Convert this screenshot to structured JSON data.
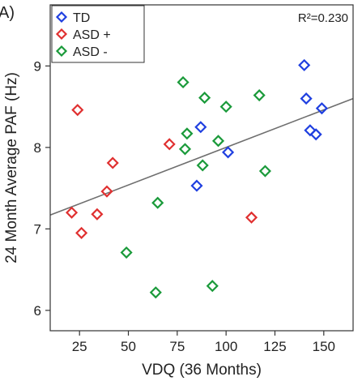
{
  "chart_data": {
    "type": "scatter",
    "panel_label": "A)",
    "xlabel": "VDQ (36 Months)",
    "ylabel": "24 Month Average PAF (Hz)",
    "annotation": "R²=0.230",
    "xlim": [
      10,
      165
    ],
    "ylim": [
      5.75,
      9.75
    ],
    "xticks": [
      25,
      50,
      75,
      100,
      125,
      150
    ],
    "yticks": [
      6,
      7,
      8,
      9
    ],
    "grid": false,
    "legend_position": "top-left",
    "marker": "diamond-open",
    "series": [
      {
        "name": "TD",
        "color": "#1f3fe0",
        "points": [
          [
            85,
            7.53
          ],
          [
            87,
            8.25
          ],
          [
            101,
            7.94
          ],
          [
            140,
            9.01
          ],
          [
            141,
            8.6
          ],
          [
            143,
            8.21
          ],
          [
            146,
            8.16
          ],
          [
            149,
            8.48
          ]
        ]
      },
      {
        "name": "ASD +",
        "color": "#e03030",
        "points": [
          [
            21,
            7.2
          ],
          [
            24,
            8.46
          ],
          [
            26,
            6.95
          ],
          [
            34,
            7.18
          ],
          [
            39,
            7.46
          ],
          [
            42,
            7.81
          ],
          [
            71,
            8.04
          ],
          [
            113,
            7.14
          ]
        ]
      },
      {
        "name": "ASD -",
        "color": "#1a9a3a",
        "points": [
          [
            49,
            6.71
          ],
          [
            64,
            6.22
          ],
          [
            65,
            7.32
          ],
          [
            78,
            8.8
          ],
          [
            79,
            7.98
          ],
          [
            80,
            8.17
          ],
          [
            88,
            7.78
          ],
          [
            89,
            8.61
          ],
          [
            93,
            6.3
          ],
          [
            96,
            8.08
          ],
          [
            100,
            8.5
          ],
          [
            117,
            8.64
          ],
          [
            120,
            7.71
          ]
        ]
      }
    ],
    "fit_line": {
      "color": "#6e6e6e",
      "x": [
        10,
        165
      ],
      "y": [
        7.17,
        8.6
      ]
    }
  }
}
